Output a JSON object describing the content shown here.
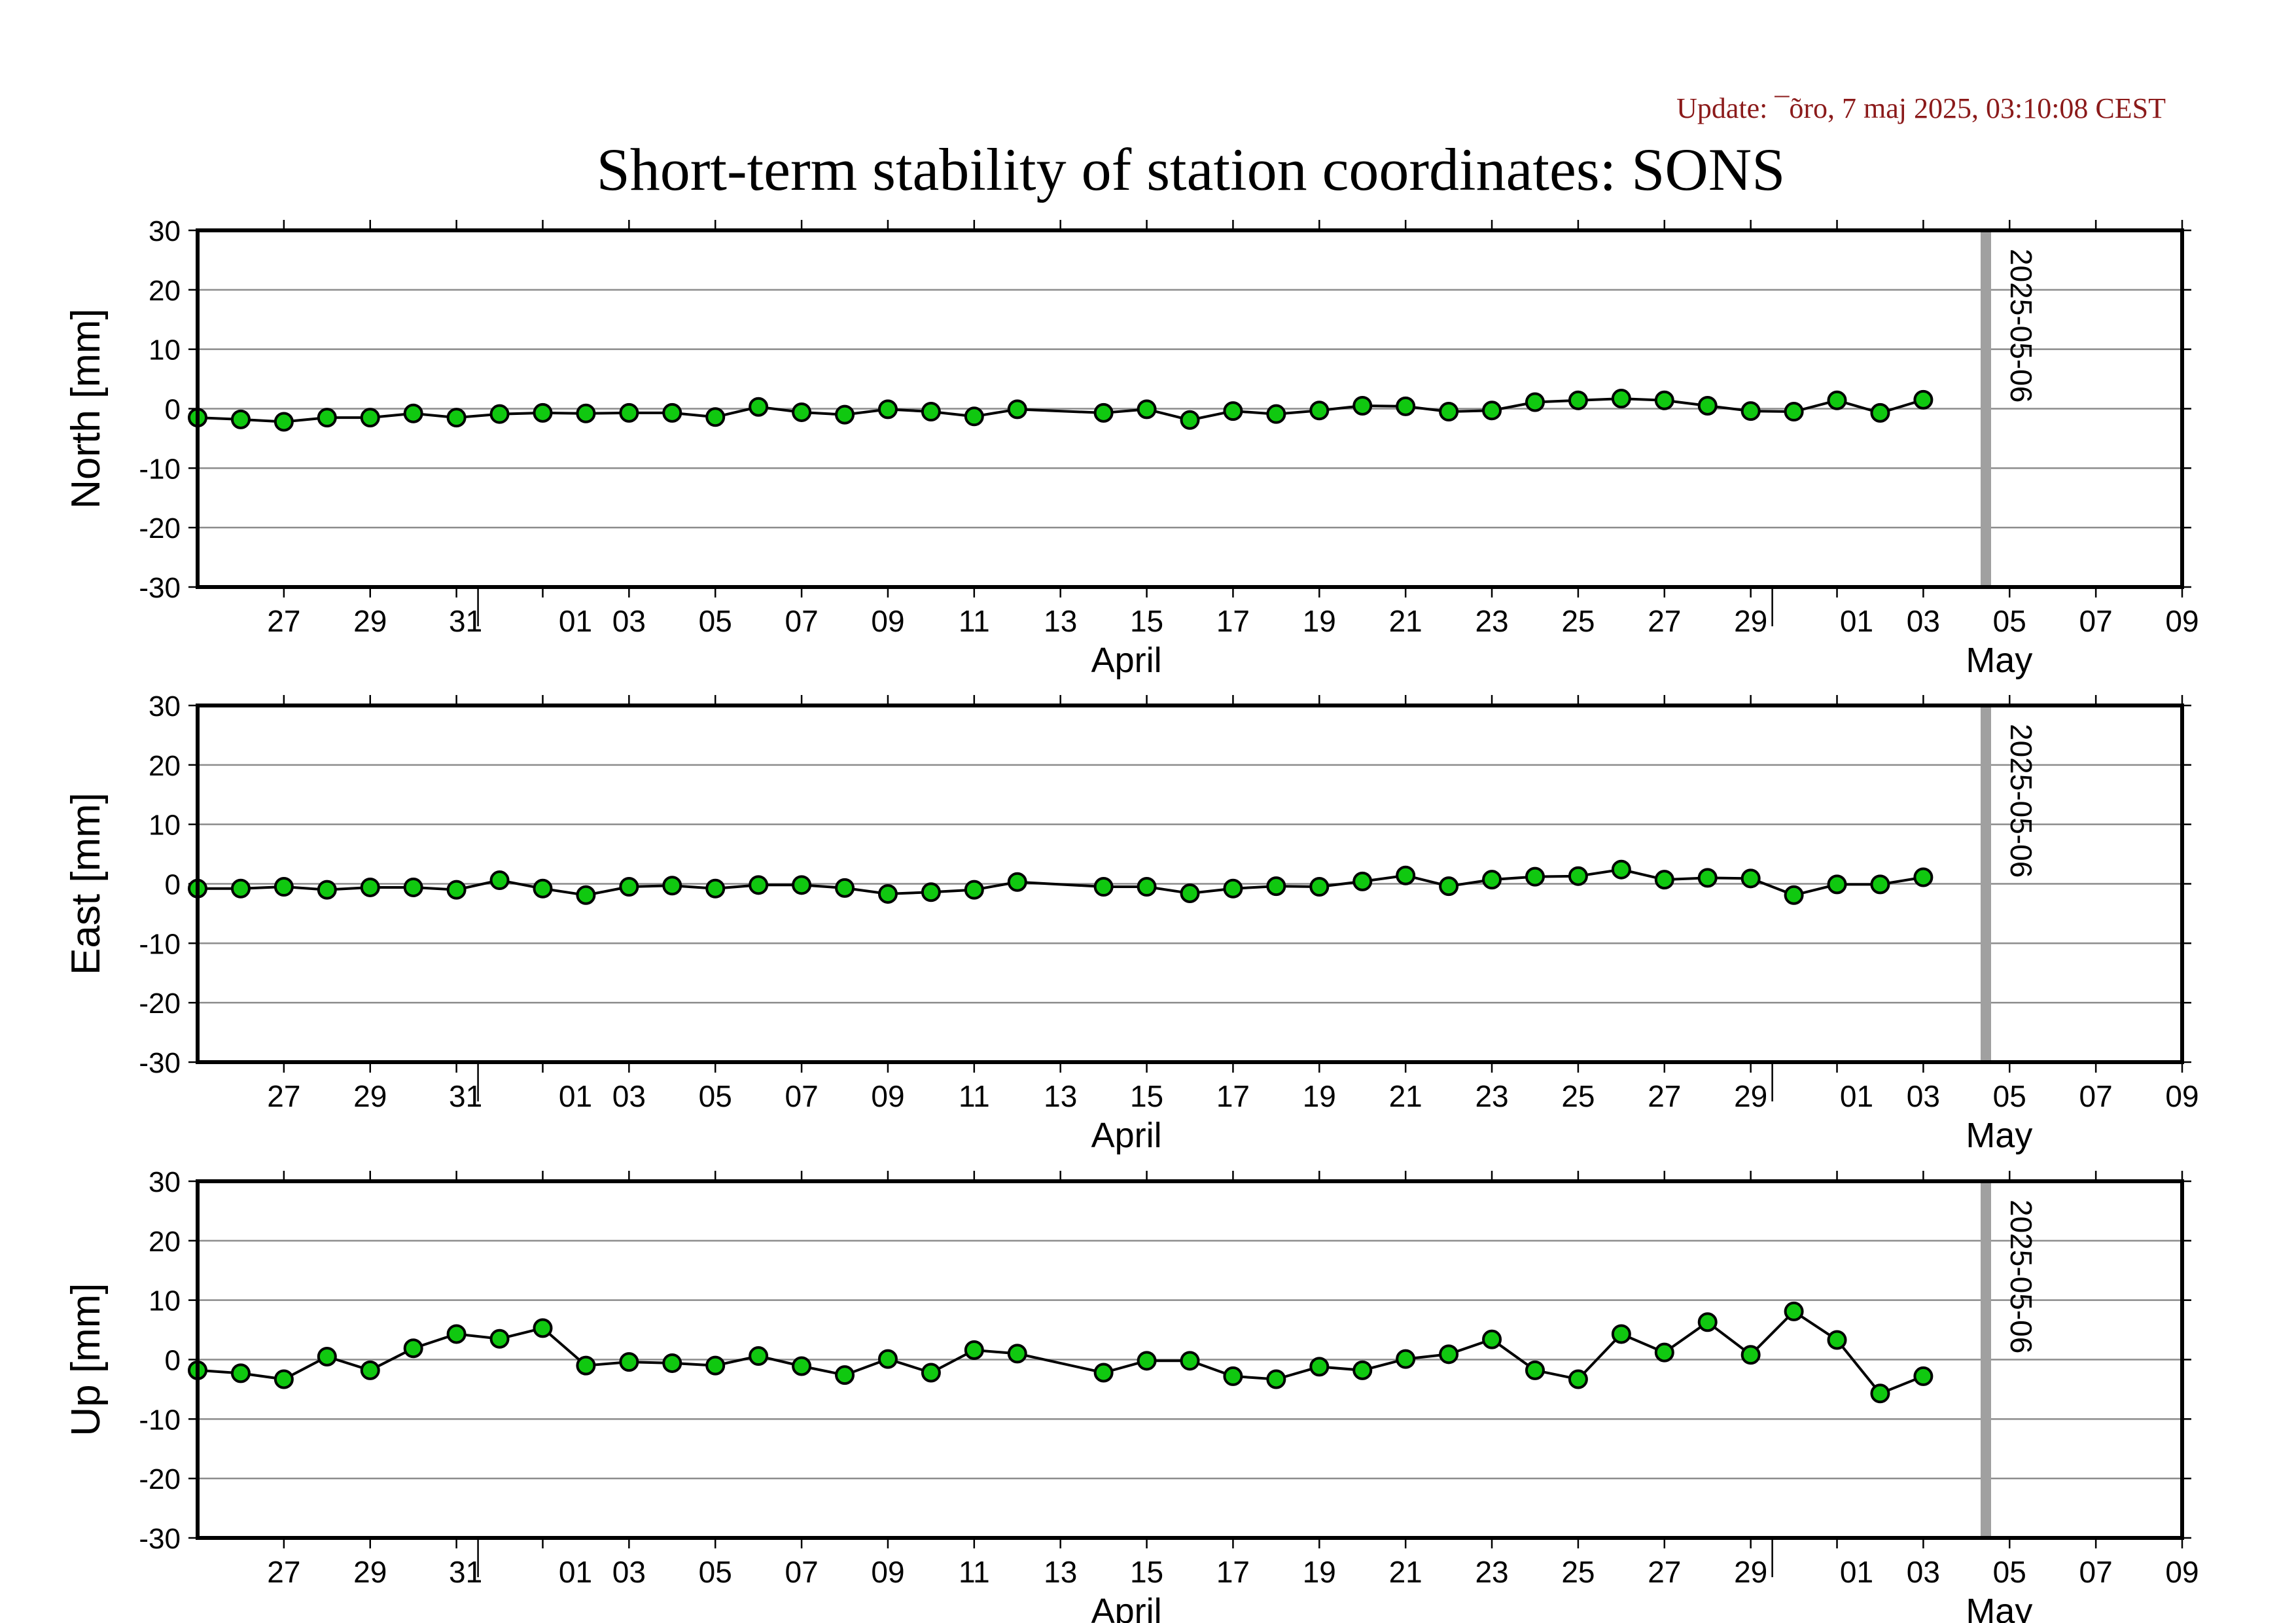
{
  "update_text": "Update: ¯õro, 7 maj 2025, 03:10:08 CEST",
  "title": "Short-term stability of station coordinates: SONS",
  "marker_label": "2025-05-06",
  "colors": {
    "marker_fill": "#10c810",
    "marker_line": "#9c9c9c",
    "update_text": "#8b1a1a"
  },
  "x_tick_labels": [
    "27",
    "29",
    "31",
    "01",
    "03",
    "05",
    "07",
    "09",
    "11",
    "13",
    "15",
    "17",
    "19",
    "21",
    "23",
    "25",
    "27",
    "29",
    "01",
    "03",
    "05",
    "07",
    "09"
  ],
  "month_labels": [
    "April",
    "May"
  ],
  "chart_data": [
    {
      "type": "line",
      "ylabel": "North [mm]",
      "ylim": [
        -30,
        30
      ],
      "yticks": [
        "30",
        "20",
        "10",
        "0",
        "-10",
        "-20",
        "-30"
      ],
      "xlim": [
        "2025-03-25",
        "2025-05-10"
      ],
      "grid": true,
      "marker_date": "2025-05-06",
      "series": [
        {
          "x": [
            "2025-03-25",
            "2025-03-26",
            "2025-03-27",
            "2025-03-28",
            "2025-03-29",
            "2025-03-30",
            "2025-03-31",
            "2025-04-01",
            "2025-04-02",
            "2025-04-03",
            "2025-04-04",
            "2025-04-05",
            "2025-04-06",
            "2025-04-07",
            "2025-04-08",
            "2025-04-09",
            "2025-04-10",
            "2025-04-11",
            "2025-04-12",
            "2025-04-13",
            "2025-04-15",
            "2025-04-16",
            "2025-04-17",
            "2025-04-18",
            "2025-04-19",
            "2025-04-20",
            "2025-04-21",
            "2025-04-22",
            "2025-04-23",
            "2025-04-24",
            "2025-04-25",
            "2025-04-26",
            "2025-04-27",
            "2025-04-28",
            "2025-04-29",
            "2025-04-30",
            "2025-05-01",
            "2025-05-02",
            "2025-05-03",
            "2025-05-04"
          ],
          "values": [
            -1.5,
            -1.8,
            -2.2,
            -1.5,
            -1.5,
            -0.8,
            -1.5,
            -0.9,
            -0.7,
            -0.8,
            -0.7,
            -0.7,
            -1.4,
            0.3,
            -0.6,
            -1.0,
            -0.1,
            -0.5,
            -1.3,
            -0.1,
            -0.7,
            -0.1,
            -1.9,
            -0.4,
            -0.9,
            -0.3,
            0.5,
            0.4,
            -0.5,
            -0.3,
            1.1,
            1.4,
            1.7,
            1.4,
            0.5,
            -0.4,
            -0.5,
            1.4,
            -0.7,
            1.5
          ]
        }
      ]
    },
    {
      "type": "line",
      "ylabel": "East [mm]",
      "ylim": [
        -30,
        30
      ],
      "yticks": [
        "30",
        "20",
        "10",
        "0",
        "-10",
        "-20",
        "-30"
      ],
      "xlim": [
        "2025-03-25",
        "2025-05-10"
      ],
      "grid": true,
      "marker_date": "2025-05-06",
      "series": [
        {
          "x": [
            "2025-03-25",
            "2025-03-26",
            "2025-03-27",
            "2025-03-28",
            "2025-03-29",
            "2025-03-30",
            "2025-03-31",
            "2025-04-01",
            "2025-04-02",
            "2025-04-03",
            "2025-04-04",
            "2025-04-05",
            "2025-04-06",
            "2025-04-07",
            "2025-04-08",
            "2025-04-09",
            "2025-04-10",
            "2025-04-11",
            "2025-04-12",
            "2025-04-13",
            "2025-04-15",
            "2025-04-16",
            "2025-04-17",
            "2025-04-18",
            "2025-04-19",
            "2025-04-20",
            "2025-04-21",
            "2025-04-22",
            "2025-04-23",
            "2025-04-24",
            "2025-04-25",
            "2025-04-26",
            "2025-04-27",
            "2025-04-28",
            "2025-04-29",
            "2025-04-30",
            "2025-05-01",
            "2025-05-02",
            "2025-05-03",
            "2025-05-04"
          ],
          "values": [
            -0.8,
            -0.8,
            -0.5,
            -1.0,
            -0.6,
            -0.6,
            -1.0,
            0.6,
            -0.8,
            -1.9,
            -0.5,
            -0.3,
            -0.8,
            -0.2,
            -0.2,
            -0.7,
            -1.7,
            -1.4,
            -1.0,
            0.3,
            -0.5,
            -0.5,
            -1.6,
            -0.8,
            -0.4,
            -0.5,
            0.4,
            1.4,
            -0.4,
            0.7,
            1.2,
            1.3,
            2.4,
            0.7,
            1.0,
            0.9,
            -1.9,
            -0.1,
            -0.1,
            1.1
          ]
        }
      ]
    },
    {
      "type": "line",
      "ylabel": "Up [mm]",
      "ylim": [
        -30,
        30
      ],
      "yticks": [
        "30",
        "20",
        "10",
        "0",
        "-10",
        "-20",
        "-30"
      ],
      "xlim": [
        "2025-03-25",
        "2025-05-10"
      ],
      "grid": true,
      "marker_date": "2025-05-06",
      "series": [
        {
          "x": [
            "2025-03-25",
            "2025-03-26",
            "2025-03-27",
            "2025-03-28",
            "2025-03-29",
            "2025-03-30",
            "2025-03-31",
            "2025-04-01",
            "2025-04-02",
            "2025-04-03",
            "2025-04-04",
            "2025-04-05",
            "2025-04-06",
            "2025-04-07",
            "2025-04-08",
            "2025-04-09",
            "2025-04-10",
            "2025-04-11",
            "2025-04-12",
            "2025-04-13",
            "2025-04-15",
            "2025-04-16",
            "2025-04-17",
            "2025-04-18",
            "2025-04-19",
            "2025-04-20",
            "2025-04-21",
            "2025-04-22",
            "2025-04-23",
            "2025-04-24",
            "2025-04-25",
            "2025-04-26",
            "2025-04-27",
            "2025-04-28",
            "2025-04-29",
            "2025-04-30",
            "2025-05-01",
            "2025-05-02",
            "2025-05-03",
            "2025-05-04"
          ],
          "values": [
            -1.8,
            -2.3,
            -3.3,
            0.5,
            -1.8,
            1.9,
            4.3,
            3.5,
            5.3,
            -1.0,
            -0.4,
            -0.6,
            -1.0,
            0.6,
            -1.1,
            -2.6,
            0.1,
            -2.2,
            1.6,
            1.0,
            -2.2,
            -0.2,
            -0.2,
            -2.8,
            -3.3,
            -1.2,
            -1.8,
            0.1,
            0.9,
            3.4,
            -1.8,
            -3.3,
            4.3,
            1.2,
            6.3,
            0.8,
            8.1,
            3.3,
            -5.7,
            -2.8
          ]
        }
      ]
    }
  ]
}
